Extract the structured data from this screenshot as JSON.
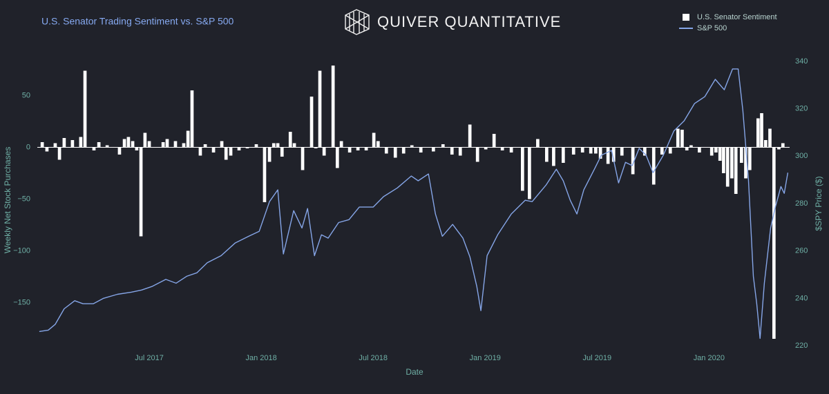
{
  "brand": "QUIVER QUANTITATIVE",
  "chart_data": {
    "type": "bar",
    "title": "U.S. Senator Trading Sentiment vs. S&P 500",
    "x_label": "Date",
    "y_label": "Weekly Net Stock Purchases",
    "y2_label": "$SPY Price ($)",
    "xlim": [
      2017.0,
      2020.36
    ],
    "xticks": [
      {
        "value": 2017.5,
        "label": "Jul 2017"
      },
      {
        "value": 2018.0,
        "label": "Jan 2018"
      },
      {
        "value": 2018.5,
        "label": "Jul 2018"
      },
      {
        "value": 2019.0,
        "label": "Jan 2019"
      },
      {
        "value": 2019.5,
        "label": "Jul 2019"
      },
      {
        "value": 2020.0,
        "label": "Jan 2020"
      }
    ],
    "ylim": [
      -191,
      89
    ],
    "yticks": [
      {
        "value": -150,
        "label": "−150"
      },
      {
        "value": -100,
        "label": "−100"
      },
      {
        "value": -50,
        "label": "−50"
      },
      0,
      50
    ],
    "y2lim": [
      220.3,
      342.6
    ],
    "y2ticks": [
      220,
      240,
      260,
      280,
      300,
      320,
      340
    ],
    "zeroline": true,
    "grid": false,
    "legend": "top-right",
    "series": [
      {
        "name": "U.S. Senator Sentiment",
        "type": "bar",
        "color": "#ffffff",
        "x": [
          2017.022,
          2017.043,
          2017.08,
          2017.099,
          2017.12,
          2017.157,
          2017.194,
          2017.213,
          2017.253,
          2017.275,
          2017.312,
          2017.367,
          2017.389,
          2017.407,
          2017.426,
          2017.444,
          2017.463,
          2017.481,
          2017.5,
          2017.562,
          2017.58,
          2017.617,
          2017.654,
          2017.673,
          2017.691,
          2017.728,
          2017.75,
          2017.787,
          2017.824,
          2017.843,
          2017.864,
          2017.901,
          2017.938,
          2017.978,
          2018.015,
          2018.037,
          2018.056,
          2018.074,
          2018.093,
          2018.13,
          2018.148,
          2018.185,
          2018.225,
          2018.244,
          2018.262,
          2018.281,
          2018.321,
          2018.34,
          2018.358,
          2018.395,
          2018.432,
          2018.469,
          2018.503,
          2018.522,
          2018.559,
          2018.599,
          2018.636,
          2018.673,
          2018.713,
          2018.769,
          2018.812,
          2018.852,
          2018.889,
          2018.932,
          2018.966,
          2019.003,
          2019.04,
          2019.077,
          2019.117,
          2019.167,
          2019.198,
          2019.235,
          2019.275,
          2019.306,
          2019.349,
          2019.395,
          2019.435,
          2019.472,
          2019.494,
          2019.515,
          2019.549,
          2019.574,
          2019.611,
          2019.66,
          2019.713,
          2019.753,
          2019.79,
          2019.827,
          2019.861,
          2019.88,
          2019.901,
          2019.92,
          2019.957,
          2020.012,
          2020.031,
          2020.049,
          2020.065,
          2020.083,
          2020.102,
          2020.12,
          2020.145,
          2020.164,
          2020.182,
          2020.219,
          2020.235,
          2020.253,
          2020.272,
          2020.29,
          2020.312,
          2020.33
        ],
        "values": [
          5,
          -4,
          4,
          -12,
          9,
          7,
          10,
          74,
          -3,
          5,
          2,
          -7,
          8,
          10,
          6,
          -3,
          -86,
          14,
          6,
          5,
          8,
          6,
          4,
          16,
          55,
          -8,
          3,
          -5,
          6,
          -12,
          -8,
          -3,
          -1,
          3,
          -53,
          -14,
          4,
          4,
          -9,
          15,
          4,
          -22,
          49,
          -1,
          74,
          -8,
          79,
          -20,
          6,
          -5,
          -3,
          -3,
          14,
          6,
          -6,
          -10,
          -6,
          2,
          -5,
          -4,
          3,
          -7,
          -8,
          22,
          -14,
          -2,
          13,
          -3,
          -5,
          -42,
          -50,
          8,
          -14,
          -18,
          -15,
          -7,
          -5,
          -6,
          -6,
          -11,
          -16,
          -14,
          -8,
          -26,
          -8,
          -36,
          -7,
          -6,
          18,
          17,
          -3,
          2,
          -5,
          -8,
          -5,
          -13,
          -25,
          -38,
          -30,
          -45,
          -15,
          -30,
          -22,
          28,
          33,
          7,
          18,
          -185,
          -2,
          4
        ]
      },
      {
        "name": "S&P 500",
        "type": "line",
        "axis": "y2",
        "color": "#86a6e8",
        "x": [
          2017.009,
          2017.049,
          2017.08,
          2017.12,
          2017.167,
          2017.204,
          2017.25,
          2017.296,
          2017.358,
          2017.42,
          2017.466,
          2017.512,
          2017.574,
          2017.62,
          2017.667,
          2017.713,
          2017.759,
          2017.821,
          2017.883,
          2017.944,
          2017.991,
          2018.037,
          2018.074,
          2018.099,
          2018.145,
          2018.182,
          2018.207,
          2018.238,
          2018.269,
          2018.299,
          2018.346,
          2018.392,
          2018.438,
          2018.5,
          2018.546,
          2018.608,
          2018.67,
          2018.701,
          2018.747,
          2018.778,
          2018.809,
          2018.855,
          2018.901,
          2018.932,
          2018.963,
          2018.981,
          2019.009,
          2019.056,
          2019.117,
          2019.179,
          2019.21,
          2019.272,
          2019.318,
          2019.349,
          2019.38,
          2019.41,
          2019.441,
          2019.488,
          2019.519,
          2019.565,
          2019.596,
          2019.627,
          2019.657,
          2019.688,
          2019.719,
          2019.75,
          2019.796,
          2019.843,
          2019.889,
          2019.935,
          2019.981,
          2020.028,
          2020.068,
          2020.105,
          2020.13,
          2020.151,
          2020.176,
          2020.198,
          2020.213,
          2020.228,
          2020.247,
          2020.275,
          2020.296,
          2020.321,
          2020.336,
          2020.352
        ],
        "values": [
          226,
          226.6,
          229,
          235.6,
          239,
          237.7,
          237.7,
          240,
          241.7,
          242.6,
          243.5,
          245,
          248,
          246.4,
          249.3,
          250.8,
          255,
          258,
          263.3,
          266.2,
          268.3,
          280.8,
          285.8,
          258.7,
          277,
          269.7,
          277.9,
          258,
          266.8,
          265.4,
          272,
          273.2,
          278.5,
          278.5,
          282.9,
          286.6,
          291.6,
          289.6,
          292.5,
          275.6,
          266.2,
          271.2,
          265.4,
          257.5,
          245,
          234.8,
          258,
          266.8,
          275.6,
          281.4,
          280.8,
          287.8,
          294.5,
          289.6,
          281.4,
          275.6,
          285.8,
          294.5,
          300.4,
          302.4,
          288.7,
          297.4,
          296,
          303.3,
          300.4,
          293,
          300.4,
          310.6,
          314.9,
          322.2,
          325.1,
          332.4,
          328,
          336.8,
          336.8,
          319.3,
          290.1,
          249.3,
          237.7,
          223.1,
          246.4,
          269.7,
          278.5,
          287.2,
          284.3,
          293
        ]
      }
    ]
  }
}
